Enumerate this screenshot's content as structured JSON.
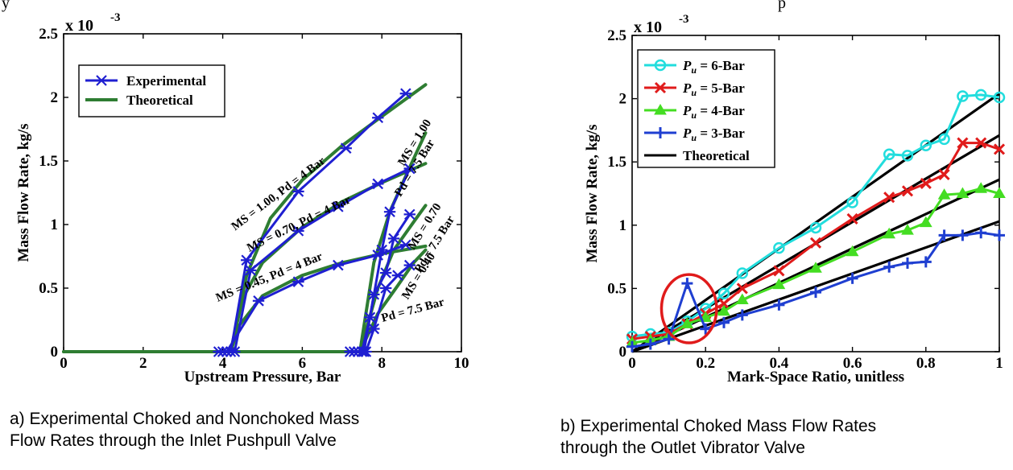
{
  "page": {
    "top_fragment_left": "y",
    "top_fragment_right": "p"
  },
  "captions": {
    "a_line1": "a) Experimental Choked and Nonchoked Mass",
    "a_line2": "Flow Rates through the Inlet Pushpull Valve",
    "b_line1": "b) Experimental Choked Mass Flow Rates",
    "b_line2": "through the Outlet Vibrator Valve"
  },
  "chart_data": [
    {
      "type": "line",
      "title": "",
      "xlabel": "Upstream Pressure, Bar",
      "ylabel": "Mass Flow Rate, kg/s",
      "exponent": "x 10",
      "exponent_power": "-3",
      "xlim": [
        0,
        10
      ],
      "ylim": [
        0,
        2.5
      ],
      "xticks": [
        "0",
        "2",
        "4",
        "6",
        "8",
        "10"
      ],
      "yticks": [
        "0",
        "0.5",
        "1",
        "1.5",
        "2",
        "2.5"
      ],
      "grid": false,
      "legend_placement": "top-left",
      "colors": {
        "experimental": "#1f1fd1",
        "theoretical": "#2e7d32"
      },
      "legend": [
        {
          "label": "Experimental",
          "kind": "experimental",
          "marker": "star"
        },
        {
          "label": "Theoretical",
          "kind": "theoretical",
          "marker": "none"
        }
      ],
      "annotations": [
        {
          "text": "MS = 1.00, Pd = 4 Bar",
          "x": 5.45,
          "y": 1.22,
          "angle": -37
        },
        {
          "text": "MS = 0.70, Pd = 4 Bar",
          "x": 5.95,
          "y": 0.98,
          "angle": -26
        },
        {
          "text": "MS = 0.45, Pd = 4 Bar",
          "x": 5.2,
          "y": 0.56,
          "angle": -22
        },
        {
          "text": "MS = 1.00",
          "x": 8.9,
          "y": 1.63,
          "angle": -58
        },
        {
          "text": "Pd = 7.5 Bar",
          "x": 8.9,
          "y": 1.43,
          "angle": -58
        },
        {
          "text": "MS = 0.70",
          "x": 9.15,
          "y": 0.97,
          "angle": -58
        },
        {
          "text": "Pd = 7.5 Bar",
          "x": 9.4,
          "y": 0.83,
          "angle": -58
        },
        {
          "text": "MS = 0.40",
          "x": 9.0,
          "y": 0.58,
          "angle": -58
        },
        {
          "text": "Pd = 7.5 Bar",
          "x": 8.8,
          "y": 0.3,
          "angle": -15
        }
      ],
      "series": [
        {
          "name": "Theoretical",
          "kind": "theoretical",
          "x": [
            0,
            4.2,
            4.6,
            5.2,
            6.0,
            7.0,
            8.0,
            9.1
          ],
          "y": [
            0,
            0,
            0.6,
            1.05,
            1.35,
            1.62,
            1.85,
            2.1
          ]
        },
        {
          "name": "Theoretical",
          "kind": "theoretical",
          "x": [
            4.2,
            4.5,
            5.0,
            6.0,
            7.0,
            8.0,
            9.1
          ],
          "y": [
            0,
            0.42,
            0.7,
            0.98,
            1.18,
            1.33,
            1.48
          ]
        },
        {
          "name": "Theoretical",
          "kind": "theoretical",
          "x": [
            4.2,
            4.4,
            5.0,
            6.0,
            7.0,
            8.0,
            9.1
          ],
          "y": [
            0,
            0.2,
            0.44,
            0.6,
            0.7,
            0.77,
            0.83
          ]
        },
        {
          "name": "Theoretical",
          "kind": "theoretical",
          "x": [
            0,
            7.45,
            7.8,
            8.2,
            8.7,
            9.1
          ],
          "y": [
            0,
            0,
            0.7,
            1.1,
            1.45,
            1.72
          ]
        },
        {
          "name": "Theoretical",
          "kind": "theoretical",
          "x": [
            7.45,
            7.9,
            8.3,
            8.8,
            9.1
          ],
          "y": [
            0,
            0.5,
            0.8,
            1.02,
            1.15
          ]
        },
        {
          "name": "Theoretical",
          "kind": "theoretical",
          "x": [
            7.45,
            7.9,
            8.4,
            8.8,
            9.1
          ],
          "y": [
            0,
            0.3,
            0.52,
            0.7,
            0.8
          ]
        },
        {
          "name": "Experimental",
          "kind": "experimental",
          "x": [
            3.9,
            4.2,
            4.6,
            5.9,
            7.1,
            7.9,
            8.6
          ],
          "y": [
            0,
            0,
            0.72,
            1.26,
            1.6,
            1.84,
            2.03
          ]
        },
        {
          "name": "Experimental",
          "kind": "experimental",
          "x": [
            4.0,
            4.3,
            4.7,
            5.9,
            6.9,
            7.9,
            8.7
          ],
          "y": [
            0,
            0,
            0.64,
            0.95,
            1.14,
            1.32,
            1.44
          ]
        },
        {
          "name": "Experimental",
          "kind": "experimental",
          "x": [
            4.1,
            4.9,
            5.9,
            6.9,
            7.9,
            8.6
          ],
          "y": [
            0,
            0.4,
            0.55,
            0.68,
            0.76,
            0.84
          ]
        },
        {
          "name": "Experimental",
          "kind": "experimental",
          "x": [
            7.2,
            7.5,
            7.7,
            8.0,
            8.2,
            8.7
          ],
          "y": [
            0,
            0,
            0.27,
            0.8,
            1.1,
            1.44
          ]
        },
        {
          "name": "Experimental",
          "kind": "experimental",
          "x": [
            7.3,
            7.55,
            7.8,
            8.1,
            8.3,
            8.7
          ],
          "y": [
            0,
            0,
            0.45,
            0.62,
            0.89,
            1.08
          ]
        },
        {
          "name": "Experimental",
          "kind": "experimental",
          "x": [
            7.4,
            7.6,
            7.8,
            8.1,
            8.4,
            8.7
          ],
          "y": [
            0,
            0,
            0.18,
            0.5,
            0.6,
            0.68
          ]
        }
      ]
    },
    {
      "type": "line",
      "title": "",
      "xlabel": "Mark-Space Ratio, unitless",
      "ylabel": "Mass Flow Rate, kg/s",
      "exponent": "x 10",
      "exponent_power": "-3",
      "xlim": [
        0,
        1
      ],
      "ylim": [
        0,
        2.5
      ],
      "xticks": [
        "0",
        "0.2",
        "0.4",
        "0.6",
        "0.8",
        "1"
      ],
      "yticks": [
        "0",
        "0.5",
        "1",
        "1.5",
        "2",
        "2.5"
      ],
      "grid": false,
      "legend_placement": "top-left",
      "highlight_circle": {
        "x": 0.155,
        "y": 0.34,
        "rx": 0.075,
        "ry": 0.27,
        "color": "#e01b1b"
      },
      "legend": [
        {
          "label_prefix": "P",
          "label_sub": "u",
          "label_rest": " = 6-Bar",
          "color": "#22dddd",
          "marker": "circle"
        },
        {
          "label_prefix": "P",
          "label_sub": "u",
          "label_rest": " = 5-Bar",
          "color": "#e01b1b",
          "marker": "x"
        },
        {
          "label_prefix": "P",
          "label_sub": "u",
          "label_rest": " = 4-Bar",
          "color": "#44dd22",
          "marker": "triangle"
        },
        {
          "label_prefix": "P",
          "label_sub": "u",
          "label_rest": " = 3-Bar",
          "color": "#1f3fd1",
          "marker": "plus"
        },
        {
          "label_prefix": "",
          "label_sub": "",
          "label_rest": "Theoretical",
          "color": "#000000",
          "marker": "none"
        }
      ],
      "theoretical": [
        {
          "x": [
            0,
            1
          ],
          "y": [
            0,
            2.04
          ]
        },
        {
          "x": [
            0,
            1
          ],
          "y": [
            0,
            1.71
          ]
        },
        {
          "x": [
            0,
            1
          ],
          "y": [
            0,
            1.36
          ]
        },
        {
          "x": [
            0,
            1
          ],
          "y": [
            0,
            1.03
          ]
        }
      ],
      "series": [
        {
          "name": "Pu = 6-Bar",
          "color": "#22dddd",
          "marker": "circle",
          "x": [
            0.0,
            0.05,
            0.1,
            0.15,
            0.2,
            0.25,
            0.3,
            0.4,
            0.5,
            0.6,
            0.7,
            0.75,
            0.8,
            0.85,
            0.9,
            0.95,
            1.0
          ],
          "y": [
            0.12,
            0.14,
            0.15,
            0.24,
            0.34,
            0.46,
            0.62,
            0.82,
            0.98,
            1.18,
            1.56,
            1.55,
            1.63,
            1.68,
            2.02,
            2.03,
            2.01
          ]
        },
        {
          "name": "Pu = 5-Bar",
          "color": "#e01b1b",
          "marker": "x",
          "x": [
            0.0,
            0.05,
            0.1,
            0.15,
            0.2,
            0.25,
            0.3,
            0.4,
            0.5,
            0.6,
            0.7,
            0.75,
            0.8,
            0.85,
            0.9,
            0.95,
            1.0
          ],
          "y": [
            0.1,
            0.12,
            0.14,
            0.22,
            0.3,
            0.38,
            0.5,
            0.64,
            0.86,
            1.05,
            1.22,
            1.27,
            1.33,
            1.4,
            1.65,
            1.65,
            1.6
          ]
        },
        {
          "name": "Pu = 4-Bar",
          "color": "#44dd22",
          "marker": "triangle",
          "x": [
            0.0,
            0.05,
            0.1,
            0.15,
            0.2,
            0.25,
            0.3,
            0.4,
            0.5,
            0.6,
            0.7,
            0.75,
            0.8,
            0.85,
            0.9,
            0.95,
            1.0
          ],
          "y": [
            0.07,
            0.09,
            0.12,
            0.22,
            0.27,
            0.32,
            0.41,
            0.53,
            0.66,
            0.79,
            0.93,
            0.96,
            1.02,
            1.24,
            1.25,
            1.29,
            1.25
          ]
        },
        {
          "name": "Pu = 3-Bar",
          "color": "#1f3fd1",
          "marker": "plus",
          "x": [
            0.0,
            0.05,
            0.1,
            0.15,
            0.2,
            0.25,
            0.3,
            0.4,
            0.5,
            0.6,
            0.7,
            0.75,
            0.8,
            0.85,
            0.9,
            0.95,
            1.0
          ],
          "y": [
            0.04,
            0.06,
            0.1,
            0.54,
            0.18,
            0.23,
            0.29,
            0.37,
            0.47,
            0.58,
            0.67,
            0.7,
            0.71,
            0.92,
            0.92,
            0.94,
            0.92
          ]
        }
      ]
    }
  ]
}
